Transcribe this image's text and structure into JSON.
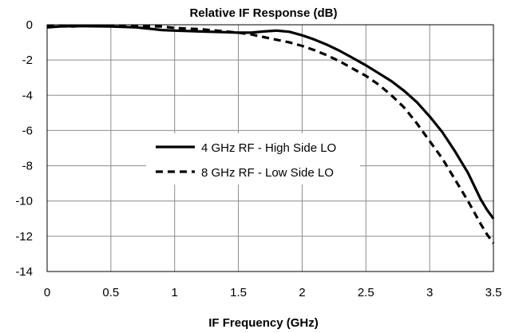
{
  "chart_data": {
    "type": "line",
    "title": "Relative IF Response (dB)",
    "xlabel": "IF Frequency  (GHz)",
    "ylabel": "",
    "xlim": [
      0,
      3.5
    ],
    "ylim": [
      -14,
      0
    ],
    "x_ticks": [
      0,
      0.5,
      1,
      1.5,
      2,
      2.5,
      3,
      3.5
    ],
    "x_tick_labels": [
      "0",
      "0.5",
      "1",
      "1.5",
      "2",
      "2.5",
      "3",
      "3.5"
    ],
    "y_ticks": [
      0,
      -2,
      -4,
      -6,
      -8,
      -10,
      -12,
      -14
    ],
    "y_tick_labels": [
      "0",
      "-2",
      "-4",
      "-6",
      "-8",
      "-10",
      "-12",
      "-14"
    ],
    "grid": true,
    "legend_position": "center-left",
    "series": [
      {
        "name": "4 GHz RF - High Side LO",
        "style": "solid",
        "color": "#000000",
        "x": [
          0,
          0.1,
          0.2,
          0.3,
          0.5,
          0.7,
          0.8,
          0.9,
          1.0,
          1.2,
          1.4,
          1.5,
          1.6,
          1.7,
          1.8,
          1.9,
          2.0,
          2.1,
          2.2,
          2.3,
          2.4,
          2.5,
          2.6,
          2.7,
          2.8,
          2.9,
          3.0,
          3.1,
          3.2,
          3.3,
          3.4,
          3.45,
          3.5
        ],
        "y": [
          -0.15,
          -0.1,
          -0.08,
          -0.08,
          -0.1,
          -0.15,
          -0.22,
          -0.3,
          -0.33,
          -0.38,
          -0.42,
          -0.45,
          -0.45,
          -0.38,
          -0.33,
          -0.4,
          -0.6,
          -0.85,
          -1.15,
          -1.5,
          -1.9,
          -2.3,
          -2.75,
          -3.2,
          -3.75,
          -4.4,
          -5.2,
          -6.1,
          -7.2,
          -8.4,
          -9.9,
          -10.5,
          -11.0
        ]
      },
      {
        "name": "8 GHz RF - Low Side LO",
        "style": "dashed",
        "color": "#000000",
        "x": [
          0,
          0.1,
          0.2,
          0.3,
          0.5,
          0.7,
          0.8,
          0.9,
          1.0,
          1.2,
          1.4,
          1.5,
          1.6,
          1.7,
          1.8,
          1.9,
          2.0,
          2.1,
          2.2,
          2.3,
          2.4,
          2.5,
          2.6,
          2.7,
          2.8,
          2.9,
          3.0,
          3.1,
          3.2,
          3.3,
          3.4,
          3.45,
          3.5
        ],
        "y": [
          -0.05,
          -0.08,
          -0.1,
          -0.05,
          -0.05,
          -0.05,
          -0.08,
          -0.1,
          -0.18,
          -0.25,
          -0.38,
          -0.45,
          -0.55,
          -0.7,
          -0.85,
          -1.0,
          -1.2,
          -1.45,
          -1.75,
          -2.1,
          -2.5,
          -2.9,
          -3.4,
          -4.0,
          -4.7,
          -5.6,
          -6.6,
          -7.6,
          -8.8,
          -10.0,
          -11.3,
          -11.9,
          -12.4
        ]
      }
    ]
  }
}
